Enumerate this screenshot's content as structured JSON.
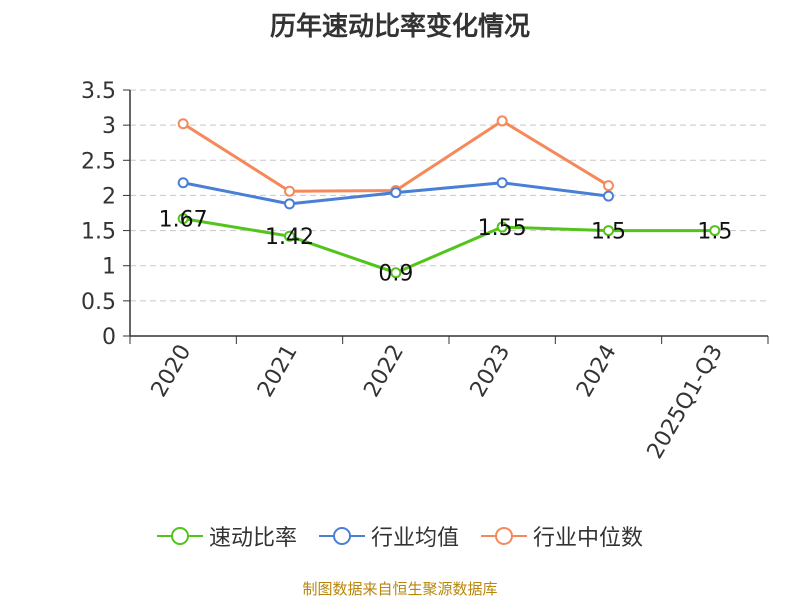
{
  "chart_data": {
    "type": "line",
    "title": "历年速动比率变化情况",
    "categories": [
      "2020",
      "2021",
      "2022",
      "2023",
      "2024",
      "2025Q1-Q3"
    ],
    "ylim": [
      0,
      3.5
    ],
    "yticks": [
      "0",
      "0.5",
      "1",
      "1.5",
      "2",
      "2.5",
      "3",
      "3.5"
    ],
    "grid": true,
    "legend_position": "bottom",
    "series": [
      {
        "name": "速动比率",
        "color": "#52c41a",
        "values": [
          1.67,
          1.42,
          0.9,
          1.55,
          1.5,
          1.5
        ],
        "data_labels": [
          "1.67",
          "1.42",
          "0.9",
          "1.55",
          "1.5",
          "1.5"
        ]
      },
      {
        "name": "行业均值",
        "color": "#4a7fd6",
        "values": [
          2.18,
          1.88,
          2.04,
          2.18,
          1.99,
          null
        ]
      },
      {
        "name": "行业中位数",
        "color": "#f5895a",
        "values": [
          3.02,
          2.06,
          2.07,
          3.06,
          2.14,
          null
        ]
      }
    ]
  },
  "source_text": "制图数据来自恒生聚源数据库"
}
